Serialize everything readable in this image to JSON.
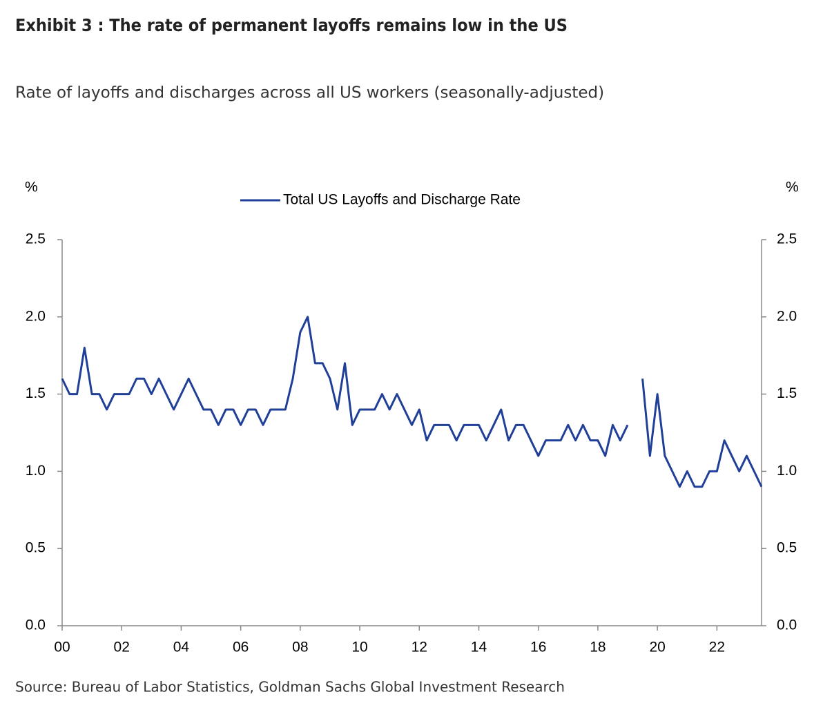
{
  "chart_data": {
    "type": "line",
    "title": "Exhibit 3 : The rate of permanent layoffs remains low in the US",
    "subtitle": "Rate of layoffs and discharges across all US workers (seasonally-adjusted)",
    "ylabel": "%",
    "y2label": "%",
    "source": "Source: Bureau of Labor Statistics, Goldman Sachs Global Investment Research",
    "legend": "top",
    "xlim": [
      2000,
      2023.5
    ],
    "xticks": [
      {
        "value": 2000,
        "label": "00"
      },
      {
        "value": 2002,
        "label": "02"
      },
      {
        "value": 2004,
        "label": "04"
      },
      {
        "value": 2006,
        "label": "06"
      },
      {
        "value": 2008,
        "label": "08"
      },
      {
        "value": 2010,
        "label": "10"
      },
      {
        "value": 2012,
        "label": "12"
      },
      {
        "value": 2014,
        "label": "14"
      },
      {
        "value": 2016,
        "label": "16"
      },
      {
        "value": 2018,
        "label": "18"
      },
      {
        "value": 2020,
        "label": "20"
      },
      {
        "value": 2022,
        "label": "22"
      }
    ],
    "ylim": [
      0,
      2.5
    ],
    "yticks": [
      {
        "value": 0,
        "label": "0.0"
      },
      0.5,
      {
        "value": 1,
        "label": "1.0"
      },
      1.5,
      {
        "value": 2,
        "label": "2.0"
      },
      2.5
    ],
    "y2lim": [
      0,
      2.5
    ],
    "y2ticks": [
      {
        "value": 0,
        "label": "0.0"
      },
      0.5,
      {
        "value": 1,
        "label": "1.0"
      },
      1.5,
      {
        "value": 2,
        "label": "2.0"
      },
      2.5
    ],
    "x": [
      2000,
      2000.25,
      2000.5,
      2000.75,
      2001,
      2001.25,
      2001.5,
      2001.75,
      2002,
      2002.25,
      2002.5,
      2002.75,
      2003,
      2003.25,
      2003.5,
      2003.75,
      2004,
      2004.25,
      2004.5,
      2004.75,
      2005,
      2005.25,
      2005.5,
      2005.75,
      2006,
      2006.25,
      2006.5,
      2006.75,
      2007,
      2007.25,
      2007.5,
      2007.75,
      2008,
      2008.25,
      2008.5,
      2008.75,
      2009,
      2009.25,
      2009.5,
      2009.75,
      2010,
      2010.25,
      2010.5,
      2010.75,
      2011,
      2011.25,
      2011.5,
      2011.75,
      2012,
      2012.25,
      2012.5,
      2012.75,
      2013,
      2013.25,
      2013.5,
      2013.75,
      2014,
      2014.25,
      2014.5,
      2014.75,
      2015,
      2015.25,
      2015.5,
      2015.75,
      2016,
      2016.25,
      2016.5,
      2016.75,
      2017,
      2017.25,
      2017.5,
      2017.75,
      2018,
      2018.25,
      2018.5,
      2018.75,
      2019,
      2019.25,
      2019.5,
      2019.75,
      2020,
      2020.25,
      2020.5,
      2020.75,
      2021,
      2021.25,
      2021.5,
      2021.75,
      2022,
      2022.25,
      2022.5,
      2022.75,
      2023,
      2023.25,
      2023.5
    ],
    "series": [
      {
        "name": "Total US Layoffs and Discharge Rate",
        "color": "#1f3f98",
        "values": [
          1.6,
          1.5,
          1.5,
          1.8,
          1.5,
          1.5,
          1.4,
          1.5,
          1.5,
          1.5,
          1.6,
          1.6,
          1.5,
          1.6,
          1.5,
          1.4,
          1.5,
          1.6,
          1.5,
          1.4,
          1.4,
          1.3,
          1.4,
          1.4,
          1.3,
          1.4,
          1.4,
          1.3,
          1.4,
          1.4,
          1.4,
          1.6,
          1.9,
          2.0,
          1.7,
          1.7,
          1.6,
          1.4,
          1.7,
          1.3,
          1.4,
          1.4,
          1.4,
          1.5,
          1.4,
          1.5,
          1.4,
          1.3,
          1.4,
          1.2,
          1.3,
          1.3,
          1.3,
          1.2,
          1.3,
          1.3,
          1.3,
          1.2,
          1.3,
          1.4,
          1.2,
          1.3,
          1.3,
          1.2,
          1.1,
          1.2,
          1.2,
          1.2,
          1.3,
          1.2,
          1.3,
          1.2,
          1.2,
          1.1,
          1.3,
          1.2,
          1.3,
          null,
          1.6,
          1.1,
          1.5,
          1.1,
          1.0,
          0.9,
          1.0,
          0.9,
          0.9,
          1.0,
          1.0,
          1.2,
          1.1,
          1.0,
          1.1,
          1.0,
          0.9
        ]
      }
    ]
  }
}
